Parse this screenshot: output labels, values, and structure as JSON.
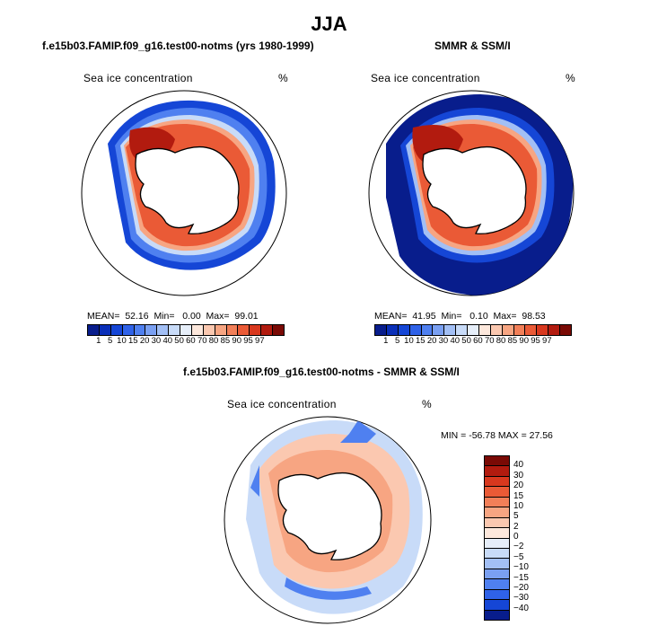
{
  "figure": {
    "title": "JJA",
    "variable": "Sea ice concentration",
    "unit": "%"
  },
  "panels": {
    "model": {
      "title": "f.e15b03.FAMIP.f09_g16.test00-notms (yrs 1980-1999)",
      "mean_label": "MEAN=",
      "mean": "52.16",
      "min_label": "Min=",
      "min": "0.00",
      "max_label": "Max=",
      "max": "99.01"
    },
    "obs": {
      "title": "SMMR & SSM/I",
      "mean_label": "MEAN=",
      "mean": "41.95",
      "min_label": "Min=",
      "min": "0.10",
      "max_label": "Max=",
      "max": "98.53"
    },
    "diff": {
      "title": "f.e15b03.FAMIP.f09_g16.test00-notms - SMMR & SSM/I",
      "minmax": "MIN = -56.78 MAX =  27.56"
    }
  },
  "colorbar_main": {
    "labels": [
      "1",
      "5",
      "10",
      "15",
      "20",
      "30",
      "40",
      "50",
      "60",
      "70",
      "80",
      "85",
      "90",
      "95",
      "97"
    ],
    "colors": [
      "#081d8c",
      "#0a2fb8",
      "#1546d6",
      "#2f62e8",
      "#4f80f0",
      "#7aa0f2",
      "#a2bff5",
      "#c8dbf8",
      "#e6eef9",
      "#fde8dc",
      "#fbc8b0",
      "#f7a582",
      "#f27f58",
      "#ea5a36",
      "#d8381e",
      "#b21b0f",
      "#7a0a05"
    ]
  },
  "colorbar_diff": {
    "labels": [
      "40",
      "30",
      "20",
      "15",
      "10",
      "5",
      "2",
      "0",
      "−2",
      "−5",
      "−10",
      "−15",
      "−20",
      "−30",
      "−40"
    ],
    "colors": [
      "#7a0a05",
      "#b21b0f",
      "#d8381e",
      "#ea5a36",
      "#f27f58",
      "#f7a582",
      "#fbc8b0",
      "#fde8dc",
      "#e6eef9",
      "#c8dbf8",
      "#a2bff5",
      "#7aa0f2",
      "#4f80f0",
      "#2f62e8",
      "#1546d6",
      "#081d8c"
    ]
  }
}
